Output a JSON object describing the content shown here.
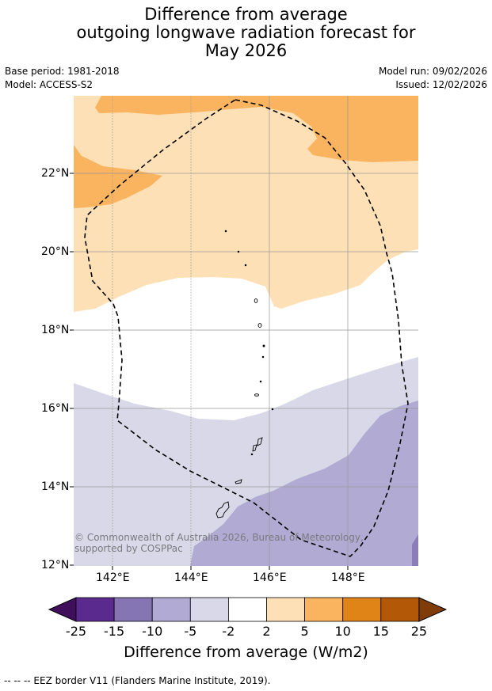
{
  "title": {
    "line1": "Difference from average",
    "line2": "outgoing longwave radiation forecast for",
    "line3": "May 2026"
  },
  "meta": {
    "base_period": "Base period: 1981-2018",
    "model": "Model: ACCESS-S2",
    "model_run": "Model run: 09/02/2026",
    "issued": "Issued: 12/02/2026"
  },
  "map": {
    "lat_ticks": [
      "22°N",
      "20°N",
      "18°N",
      "16°N",
      "14°N",
      "12°N"
    ],
    "lon_ticks": [
      "142°E",
      "144°E",
      "146°E",
      "148°E"
    ],
    "copyright": "© Commonwealth of Australia 2026, Bureau of Meteorology, supported by COSPPac",
    "colors": {
      "orange_dark": "#fab35f",
      "orange_light": "#fde0b5",
      "neutral": "#ffffff",
      "purple_light": "#d8d8e9",
      "purple_mid": "#b1aad2",
      "purple_dark": "#8a7db8"
    }
  },
  "colorbar": {
    "labels": [
      "-25",
      "-15",
      "-10",
      "-5",
      "-2",
      "2",
      "5",
      "10",
      "15",
      "25"
    ],
    "colors": [
      "#5a2a8e",
      "#8575b3",
      "#b1aad2",
      "#d8d8e9",
      "#ffffff",
      "#fde0b5",
      "#fab35f",
      "#e08418",
      "#b35806"
    ],
    "under_color": "#3f0f5c",
    "over_color": "#7f3b08",
    "title": "Difference from average (W/m2)"
  },
  "footer": "--  --  -- EEZ border V11 (Flanders Marine Institute, 2019)."
}
